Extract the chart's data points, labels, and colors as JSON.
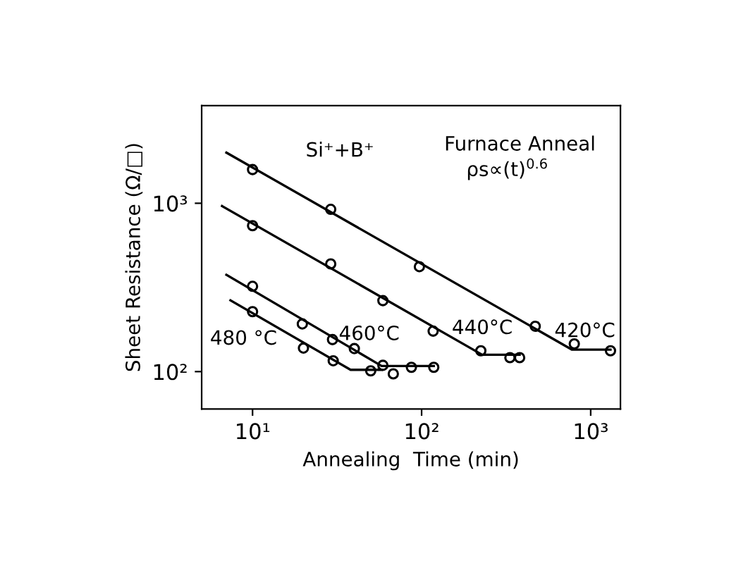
{
  "chart_data": {
    "type": "scatter",
    "xlabel": "Annealing  Time (min)",
    "ylabel": "Sheet Resistance (Ω/□)",
    "log": "xy",
    "xlim": [
      5,
      1500
    ],
    "ylim": [
      60,
      3800
    ],
    "xticks": [
      {
        "value": 10,
        "label": "10¹"
      },
      {
        "value": 100,
        "label": "10²"
      },
      {
        "value": 1000,
        "label": "10³"
      }
    ],
    "yticks": [
      {
        "value": 100,
        "label": "10²"
      },
      {
        "value": 1000,
        "label": "10³"
      }
    ],
    "grid": false,
    "series": [
      {
        "type": "line",
        "marker": "none",
        "color": "#000000",
        "x": [
          7,
          776,
          1310
        ],
        "values": [
          2000,
          135,
          135
        ]
      },
      {
        "marker": "circle",
        "color": "#000000",
        "x": [
          10,
          29,
          97,
          470,
          800,
          1310
        ],
        "values": [
          1585,
          920,
          420,
          186,
          146,
          133
        ]
      },
      {
        "type": "line",
        "marker": "none",
        "color": "#000000",
        "x": [
          6.6,
          228,
          380
        ],
        "values": [
          963,
          126,
          126
        ]
      },
      {
        "marker": "circle",
        "color": "#000000",
        "x": [
          10,
          29,
          59,
          117,
          224,
          333,
          380
        ],
        "values": [
          736,
          436,
          264,
          174,
          133,
          121,
          121
        ]
      },
      {
        "type": "line",
        "marker": "none",
        "color": "#000000",
        "x": [
          7,
          58,
          118
        ],
        "values": [
          376,
          108,
          108
        ]
      },
      {
        "marker": "circle",
        "color": "#000000",
        "x": [
          10,
          19.7,
          29.7,
          40,
          59,
          87,
          118
        ],
        "values": [
          321,
          192,
          155,
          137,
          109,
          106,
          106
        ]
      },
      {
        "type": "line",
        "marker": "none",
        "color": "#000000",
        "x": [
          7.4,
          38,
          58
        ],
        "values": [
          265,
          102.5,
          102.5
        ]
      },
      {
        "marker": "circle",
        "color": "#000000",
        "x": [
          10,
          20,
          30,
          50,
          68
        ],
        "values": [
          227,
          138,
          116,
          101,
          97
        ]
      }
    ],
    "annotations": [
      "480 °C",
      "460°C",
      "440°C",
      "420°C",
      "Si⁺+B⁺",
      "Furnace Anneal",
      "ρs∝(t)$^{0.6}$"
    ]
  }
}
